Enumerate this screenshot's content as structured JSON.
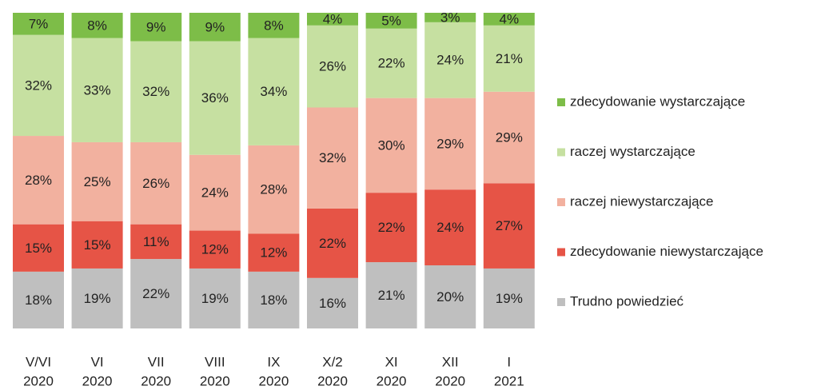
{
  "chart_data": {
    "type": "stacked_bar",
    "categories": [
      [
        "V/VI",
        "2020"
      ],
      [
        "VI",
        "2020"
      ],
      [
        "VII",
        "2020"
      ],
      [
        "VIII",
        "2020"
      ],
      [
        "IX",
        "2020"
      ],
      [
        "X/2",
        "2020"
      ],
      [
        "XI",
        "2020"
      ],
      [
        "XII",
        "2020"
      ],
      [
        "I",
        "2021"
      ]
    ],
    "ylim": [
      0,
      100
    ],
    "series": [
      {
        "name": "Trudno powiedzieć",
        "color": "#bfbfbf",
        "values": [
          18,
          19,
          22,
          19,
          18,
          16,
          21,
          20,
          19
        ],
        "value_labels": [
          "18%",
          "19%",
          "22%",
          "19%",
          "18%",
          "16%",
          "21%",
          "20%",
          "19%"
        ]
      },
      {
        "name": "zdecydowanie niewystarczające",
        "color": "#e65446",
        "values": [
          15,
          15,
          11,
          12,
          12,
          22,
          22,
          24,
          27
        ],
        "value_labels": [
          "15%",
          "15%",
          "11%",
          "12%",
          "12%",
          "22%",
          "22%",
          "24%",
          "27%"
        ]
      },
      {
        "name": "raczej niewystarczające",
        "color": "#f2b19f",
        "values": [
          28,
          25,
          26,
          24,
          28,
          32,
          30,
          29,
          29
        ],
        "value_labels": [
          "28%",
          "25%",
          "26%",
          "24%",
          "28%",
          "32%",
          "30%",
          "29%",
          "29%"
        ]
      },
      {
        "name": "raczej wystarczające",
        "color": "#c6e0a1",
        "values": [
          32,
          33,
          32,
          36,
          34,
          26,
          22,
          24,
          21
        ],
        "value_labels": [
          "32%",
          "33%",
          "32%",
          "36%",
          "34%",
          "26%",
          "22%",
          "24%",
          "21%"
        ]
      },
      {
        "name": "zdecydowanie wystarczające",
        "color": "#7dbd48",
        "values": [
          7,
          8,
          9,
          9,
          8,
          4,
          5,
          3,
          4
        ],
        "value_labels": [
          "7%",
          "8%",
          "9%",
          "9%",
          "8%",
          "4%",
          "5%",
          "3%",
          "4%"
        ]
      }
    ]
  }
}
